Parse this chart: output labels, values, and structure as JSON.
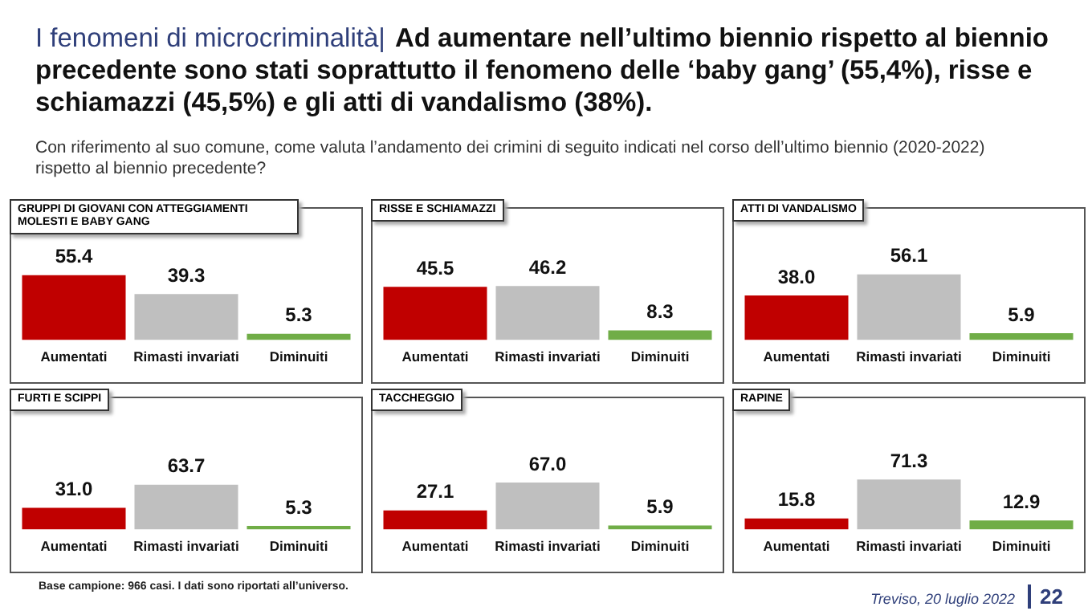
{
  "chart_data": [
    {
      "type": "bar",
      "title": "GRUPPI DI GIOVANI CON ATTEGGIAMENTI MOLESTI E BABY GANG",
      "categories": [
        "Aumentati",
        "Rimasti invariati",
        "Diminuiti"
      ],
      "values": [
        55.4,
        39.3,
        5.3
      ],
      "value_labels": [
        "55.4",
        "39.3",
        "5.3"
      ],
      "colors": [
        "#c00000",
        "#bfbfbf",
        "#70ad47"
      ],
      "grid": false,
      "legend": false,
      "tick_labels": "x",
      "annotations": [
        "I fenomeni di microcriminalità|",
        "Ad aumentare nell’ultimo biennio rispetto al biennio precedente sono stati soprattutto il fenomeno delle ‘baby gang’ (55,4%), risse e schiamazzi (45,5%) e gli atti di vandalismo (38%).",
        "Con riferimento al suo comune, come valuta l’andamento dei crimini di seguito indicati nel corso dell’ultimo biennio (2020-2022) rispetto al biennio precedente?",
        "Base campione: 966 casi. I dati sono riportati all’universo.",
        "Treviso, 20 luglio 2022",
        "22"
      ]
    },
    {
      "type": "bar",
      "title": "RISSE E SCHIAMAZZI",
      "categories": [
        "Aumentati",
        "Rimasti invariati",
        "Diminuiti"
      ],
      "values": [
        45.5,
        46.2,
        8.3
      ],
      "value_labels": [
        "45.5",
        "46.2",
        "8.3"
      ],
      "colors": [
        "#c00000",
        "#bfbfbf",
        "#70ad47"
      ],
      "grid": false,
      "legend": false,
      "tick_labels": "x"
    },
    {
      "type": "bar",
      "title": "ATTI DI VANDALISMO",
      "categories": [
        "Aumentati",
        "Rimasti invariati",
        "Diminuiti"
      ],
      "values": [
        38.0,
        56.1,
        5.9
      ],
      "value_labels": [
        "38.0",
        "56.1",
        "5.9"
      ],
      "colors": [
        "#c00000",
        "#bfbfbf",
        "#70ad47"
      ],
      "grid": false,
      "legend": false,
      "tick_labels": "x"
    },
    {
      "type": "bar",
      "title": "FURTI E SCIPPI",
      "categories": [
        "Aumentati",
        "Rimasti invariati",
        "Diminuiti"
      ],
      "values": [
        31.0,
        63.7,
        5.3
      ],
      "value_labels": [
        "31.0",
        "63.7",
        "5.3"
      ],
      "colors": [
        "#c00000",
        "#bfbfbf",
        "#70ad47"
      ],
      "grid": false,
      "legend": false,
      "tick_labels": "x"
    },
    {
      "type": "bar",
      "title": "TACCHEGGIO",
      "categories": [
        "Aumentati",
        "Rimasti invariati",
        "Diminuiti"
      ],
      "values": [
        27.1,
        67.0,
        5.9
      ],
      "value_labels": [
        "27.1",
        "67.0",
        "5.9"
      ],
      "colors": [
        "#c00000",
        "#bfbfbf",
        "#70ad47"
      ],
      "grid": false,
      "legend": false,
      "tick_labels": "x"
    },
    {
      "type": "bar",
      "title": "RAPINE",
      "categories": [
        "Aumentati",
        "Rimasti invariati",
        "Diminuiti"
      ],
      "values": [
        15.8,
        71.3,
        12.9
      ],
      "value_labels": [
        "15.8",
        "71.3",
        "12.9"
      ],
      "colors": [
        "#c00000",
        "#bfbfbf",
        "#70ad47"
      ],
      "grid": false,
      "legend": false,
      "tick_labels": "x"
    }
  ]
}
